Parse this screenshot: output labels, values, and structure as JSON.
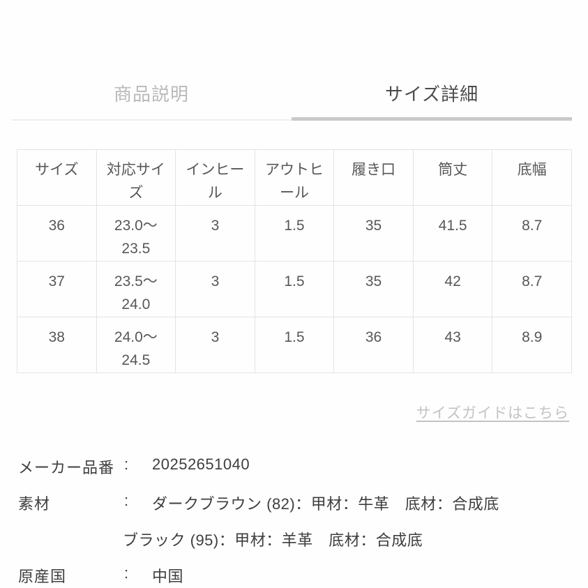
{
  "tabs": [
    {
      "label": "商品説明",
      "active": false
    },
    {
      "label": "サイズ詳細",
      "active": true
    }
  ],
  "size_table": {
    "headers": [
      "サイズ",
      "対応サイ\nズ",
      "インヒー\nル",
      "アウトヒ\nール",
      "履き口",
      "筒丈",
      "底幅"
    ],
    "rows": [
      [
        "36",
        "23.0〜\n23.5",
        "3",
        "1.5",
        "35",
        "41.5",
        "8.7"
      ],
      [
        "37",
        "23.5〜\n24.0",
        "3",
        "1.5",
        "35",
        "42",
        "8.7"
      ],
      [
        "38",
        "24.0〜\n24.5",
        "3",
        "1.5",
        "36",
        "43",
        "8.9"
      ]
    ]
  },
  "size_guide_link": "サイズガイドはこちら",
  "product_info": {
    "rows": [
      {
        "label": "メーカー品番",
        "separator": ":",
        "value": "20252651040"
      },
      {
        "label": "素材",
        "separator": ":",
        "value": "ダークブラウン (82)：甲材：牛革　底材：合成底",
        "value2": "ブラック (95)：甲材：羊革　底材：合成底"
      },
      {
        "label": "原産国",
        "separator": ":",
        "value": "中国"
      }
    ]
  },
  "colors": {
    "active_tab_text": "#4b4b4b",
    "inactive_tab_text": "#b9b9b9",
    "active_tab_underline": "#c9c9c9",
    "inactive_tab_underline": "#eeeeee",
    "table_border": "#e4e4e4",
    "table_text": "#575757",
    "link_text": "#c3c3c3",
    "info_text": "#3e3e3e"
  }
}
